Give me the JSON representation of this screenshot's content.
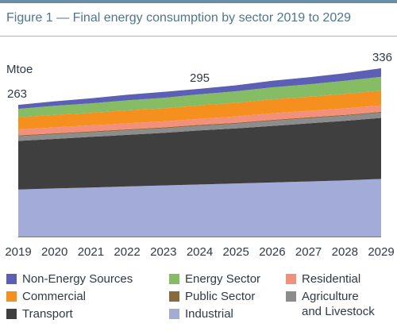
{
  "figure": {
    "title": "Figure 1 — Final energy consumption by sector 2019 to 2029"
  },
  "chart_data": {
    "type": "area",
    "stacked": true,
    "title": "Figure 1 — Final energy consumption by sector 2019 to 2029",
    "ylabel": "Mtoe",
    "xlabel": "",
    "categories": [
      "2019",
      "2020",
      "2021",
      "2022",
      "2023",
      "2024",
      "2025",
      "2026",
      "2027",
      "2028",
      "2029"
    ],
    "ylim": [
      0,
      336
    ],
    "grid": false,
    "legend_position": "bottom",
    "series": [
      {
        "name": "Industrial",
        "color": "#a3acd8",
        "values": [
          94,
          96,
          98,
          100,
          102,
          104,
          106,
          108,
          110,
          112,
          115
        ]
      },
      {
        "name": "Transport",
        "color": "#3f3f3f",
        "values": [
          97,
          99,
          101,
          103,
          105,
          108,
          110,
          113,
          116,
          119,
          122
        ]
      },
      {
        "name": "Agriculture\nand Livestock",
        "color": "#8c8c8c",
        "values": [
          9,
          9,
          9,
          9,
          9,
          9,
          9,
          10,
          10,
          10,
          10
        ]
      },
      {
        "name": "Public Sector",
        "color": "#8a6a3c",
        "values": [
          2,
          2,
          2,
          2,
          2,
          2,
          2,
          2,
          2,
          2,
          2
        ]
      },
      {
        "name": "Residential",
        "color": "#f3907c",
        "values": [
          12,
          12,
          12,
          12,
          12,
          12,
          13,
          13,
          13,
          13,
          13
        ]
      },
      {
        "name": "Commercial",
        "color": "#f5901f",
        "values": [
          24,
          25,
          25,
          26,
          26,
          27,
          27,
          28,
          28,
          29,
          29
        ]
      },
      {
        "name": "Energy Sector",
        "color": "#86bd64",
        "values": [
          17,
          18,
          19,
          20,
          21,
          22,
          23,
          24,
          25,
          26,
          28
        ]
      },
      {
        "name": "Non-Energy Sources",
        "color": "#5b60b4",
        "values": [
          8,
          9,
          10,
          11,
          12,
          11,
          12,
          13,
          14,
          15,
          17
        ]
      }
    ],
    "annotations": [
      {
        "x": "2019",
        "label": "263"
      },
      {
        "x": "2024",
        "label": "295"
      },
      {
        "x": "2029",
        "label": "336"
      }
    ]
  },
  "legend": [
    {
      "label": "Non-Energy Sources",
      "color": "#5b60b4"
    },
    {
      "label": "Energy Sector",
      "color": "#86bd64"
    },
    {
      "label": "Residential",
      "color": "#f3907c"
    },
    {
      "label": "Commercial",
      "color": "#f5901f"
    },
    {
      "label": "Public Sector",
      "color": "#8a6a3c"
    },
    {
      "label": "Agriculture\nand Livestock",
      "color": "#8c8c8c"
    },
    {
      "label": "Transport",
      "color": "#3f3f3f"
    },
    {
      "label": "Industrial",
      "color": "#a3acd8"
    }
  ]
}
